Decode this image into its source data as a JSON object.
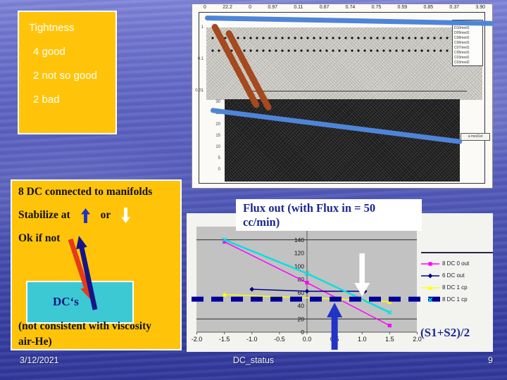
{
  "tightness_box": {
    "title": "Tightness",
    "items": [
      "4 good",
      "2 not so good",
      "2 bad"
    ]
  },
  "scan": {
    "top_values": [
      "0",
      "22.2",
      "0",
      "0.97",
      "0.11",
      "0.67",
      "0.74",
      "0.75",
      "0.59",
      "0.85",
      "0.37",
      "3.90"
    ],
    "left_axis_upper": [
      "1",
      "0.1",
      "0.01"
    ],
    "left_axis_lower": [
      "30",
      "25",
      "20",
      "15",
      "10",
      "5",
      "0"
    ],
    "legend_lines": [
      "D11med1",
      "D10med1",
      "D09med1",
      "C08med1",
      "C06med1",
      "C07med1",
      "C05med1",
      "C03med1",
      "C03med2"
    ],
    "side_label": "a med1st",
    "annotation_colors": {
      "blue_line": "#4e85d8",
      "brown_stroke": "#a5491e"
    }
  },
  "dc_box": {
    "line1": "8 DC connected to manifolds",
    "line2_pre": "Stabilize at",
    "line2_mid": "or",
    "line3": "Ok if not",
    "cyan_label": "DC‘s",
    "note_line1": "(not consistent with viscosity",
    "note_line2": "air-He)"
  },
  "chart_title_lines": [
    "Flux out (with Flux in = 50",
    "cc/min)"
  ],
  "chart_data": {
    "type": "line",
    "title": "Flux out (with Flux in = 50 cc/min)",
    "xlabel": "(S1+S2)/2",
    "ylabel": "",
    "xlim": [
      -2.0,
      2.0
    ],
    "ylim": [
      0,
      160
    ],
    "x_tick_labels": [
      "-2.0",
      "-1.5",
      "-1.0",
      "-0.5",
      "0.0",
      "0.5",
      "1.0",
      "1.5",
      "2.0"
    ],
    "y_tick_labels": [
      "0",
      "20",
      "40",
      "60",
      "80",
      "100",
      "120",
      "140",
      "160"
    ],
    "gridlines_y": [
      20,
      140
    ],
    "plot_bg": "#c2c2c2",
    "legend_position": "right",
    "series": [
      {
        "name": "8 DC 0 out",
        "color": "#ff00ff",
        "marker": "square",
        "line": true,
        "points": [
          [
            -1.5,
            137
          ],
          [
            0.0,
            75
          ],
          [
            1.5,
            10
          ]
        ]
      },
      {
        "name": "6 DC out",
        "color": "#000080",
        "marker": "diamond",
        "line": true,
        "points": [
          [
            -1.0,
            65
          ],
          [
            0.0,
            62
          ],
          [
            1.05,
            62
          ]
        ]
      },
      {
        "name": "8 DC 1 cp",
        "color": "#ffff00",
        "marker": "triangle",
        "line": true,
        "points": [
          [
            -1.5,
            57
          ],
          [
            0.6,
            50
          ],
          [
            1.5,
            46
          ]
        ]
      },
      {
        "name": "8 DC 1 cp",
        "color": "#00e0e0",
        "marker": "x",
        "line": true,
        "points": [
          [
            -1.5,
            140
          ],
          [
            0.0,
            89
          ],
          [
            1.5,
            30
          ]
        ]
      }
    ],
    "reference_line": {
      "y": 50,
      "color": "#000099",
      "style": "dashed",
      "thickness": 7
    },
    "annotations": [
      {
        "type": "arrow-down",
        "color": "#ffffff",
        "x": 1.0
      },
      {
        "type": "arrow-up",
        "color": "#2233c8",
        "x": 0.5
      }
    ]
  },
  "footer": {
    "date": "3/12/2021",
    "title": "DC_status",
    "page": "9"
  }
}
